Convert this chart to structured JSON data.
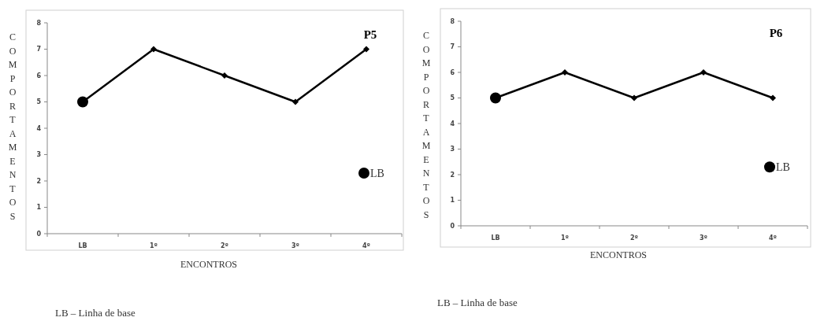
{
  "chart_data": [
    {
      "type": "line",
      "title": "P5",
      "xlabel": "ENCONTROS",
      "ylabel": "COMPORTAMENTOS",
      "annotations": [
        "LB – Linha de base"
      ],
      "categories": [
        "LB",
        "1º",
        "2º",
        "3º",
        "4º"
      ],
      "ylim": [
        0,
        8
      ],
      "yticks": [
        0,
        1,
        2,
        3,
        4,
        5,
        6,
        7,
        8
      ],
      "legend": "right",
      "series": [
        {
          "color": "#000000",
          "marker": "diamond",
          "values": [
            5,
            7,
            6,
            5,
            7
          ]
        },
        {
          "type": "scatter",
          "name": "LB",
          "color": "#000000",
          "marker": "circle",
          "values": [
            5,
            null,
            null,
            null,
            null
          ]
        }
      ]
    },
    {
      "type": "line",
      "title": "P6",
      "xlabel": "ENCONTROS",
      "ylabel": "COMPORTAMENTOS",
      "annotations": [
        "LB – Linha de base"
      ],
      "categories": [
        "LB",
        "1º",
        "2º",
        "3º",
        "4º"
      ],
      "ylim": [
        0,
        8
      ],
      "yticks": [
        0,
        1,
        2,
        3,
        4,
        5,
        6,
        7,
        8
      ],
      "legend": "right",
      "series": [
        {
          "color": "#000000",
          "marker": "diamond",
          "values": [
            5,
            6,
            5,
            6,
            5
          ]
        },
        {
          "type": "scatter",
          "name": "LB",
          "color": "#000000",
          "marker": "circle",
          "values": [
            5,
            null,
            null,
            null,
            null
          ]
        }
      ]
    }
  ]
}
